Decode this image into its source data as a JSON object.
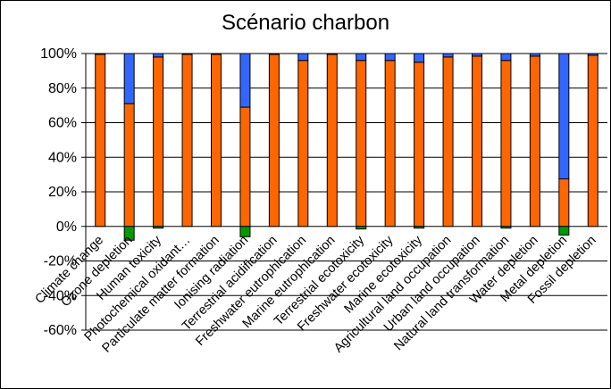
{
  "chart_data": {
    "type": "bar",
    "stacked": true,
    "title": "Scénario charbon",
    "xlabel": "",
    "ylabel": "",
    "ylim": [
      -60,
      100
    ],
    "yticks": [
      "100%",
      "80%",
      "60%",
      "40%",
      "20%",
      "0%",
      "-20%",
      "-40%",
      "-60%"
    ],
    "grid": true,
    "legend": "none",
    "categories": [
      "Climate change",
      "Ozone depletion",
      "Human toxicity",
      "Photochemical oxidant…",
      "Particulate matter formation",
      "Ionising radiation",
      "Terrestrial acidification",
      "Freshwater eutrophication",
      "Marine eutrophication",
      "Terrestrial ecotoxicity",
      "Freshwater ecotoxicity",
      "Marine ecotoxicity",
      "Agricultural land occupation",
      "Urban land occupation",
      "Natural land transformation",
      "Water depletion",
      "Metal depletion",
      "Fossil depletion"
    ],
    "series": [
      {
        "color": "#ff6600",
        "values": [
          99.5,
          71,
          98,
          99.5,
          99.5,
          69,
          99.5,
          96,
          99.5,
          96,
          96,
          95,
          98,
          98.5,
          96,
          98.5,
          27.5,
          99
        ]
      },
      {
        "color": "#3366ff",
        "values": [
          0.5,
          29,
          2,
          0.5,
          0.5,
          31,
          0.5,
          4,
          0.5,
          4,
          4,
          5,
          2,
          1.5,
          4,
          1.5,
          72.5,
          1
        ]
      },
      {
        "color": "#009900",
        "values": [
          0,
          -8,
          -1,
          0,
          0,
          -6,
          0,
          0,
          0,
          -1.5,
          0,
          -1,
          0,
          0,
          -1,
          0,
          -5,
          0
        ]
      }
    ]
  }
}
